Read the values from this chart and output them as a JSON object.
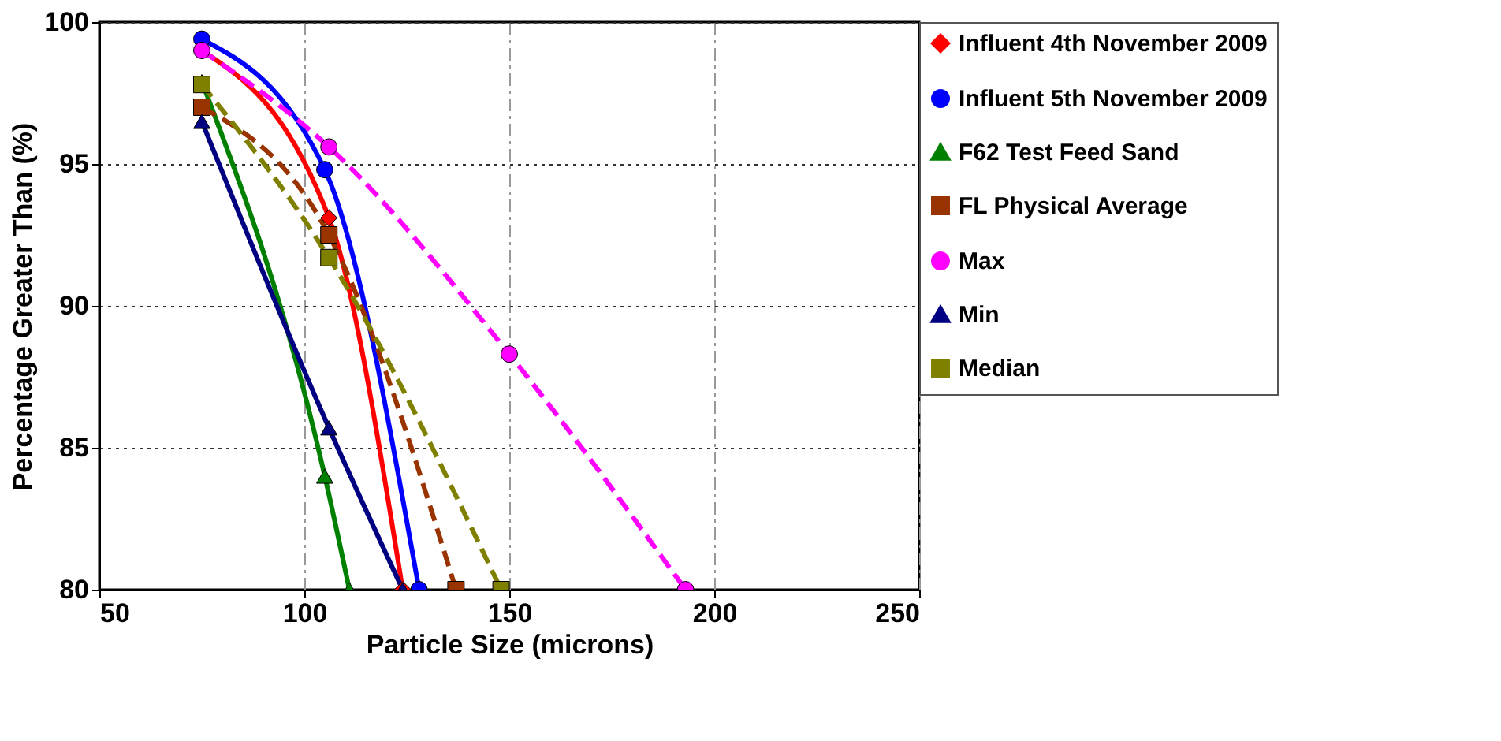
{
  "chart_data": {
    "type": "line",
    "xlabel": "Particle Size (microns)",
    "ylabel": "Percentage Greater Than (%)",
    "xlim": [
      50,
      250
    ],
    "xticks": [
      50,
      100,
      150,
      200,
      250
    ],
    "ylim": [
      80,
      100
    ],
    "yticks": [
      80,
      85,
      90,
      95,
      100
    ],
    "grid": true,
    "legend": "right",
    "series": [
      {
        "name": "Influent 4th November 2009",
        "color": "#ff0000",
        "marker": "diamond",
        "line_style": "solid",
        "x": [
          75,
          106,
          124
        ],
        "values": [
          99.0,
          93.1,
          80
        ]
      },
      {
        "name": "Influent 5th November 2009",
        "color": "#0000ff",
        "marker": "circle",
        "line_style": "solid",
        "x": [
          75,
          105,
          128
        ],
        "values": [
          99.4,
          94.8,
          80
        ]
      },
      {
        "name": "F62 Test Feed Sand",
        "color": "#008000",
        "marker": "triangle",
        "line_style": "solid",
        "x": [
          75,
          105,
          111
        ],
        "values": [
          97.9,
          84.0,
          80
        ]
      },
      {
        "name": "FL Physical Average",
        "color": "#993300",
        "marker": "square",
        "line_style": "dashed",
        "x": [
          75,
          106,
          137
        ],
        "values": [
          97.0,
          92.5,
          80
        ]
      },
      {
        "name": "Max",
        "color": "#ff00ff",
        "marker": "circle",
        "line_style": "dashed",
        "x": [
          75,
          106,
          150,
          193
        ],
        "values": [
          99.0,
          95.6,
          88.3,
          80
        ]
      },
      {
        "name": "Min",
        "color": "#000080",
        "marker": "triangle",
        "line_style": "solid",
        "x": [
          75,
          106,
          124
        ],
        "values": [
          96.5,
          85.7,
          80
        ]
      },
      {
        "name": "Median",
        "color": "#808000",
        "marker": "square",
        "line_style": "dashed",
        "x": [
          75,
          106,
          148
        ],
        "values": [
          97.8,
          91.7,
          80
        ]
      }
    ]
  }
}
